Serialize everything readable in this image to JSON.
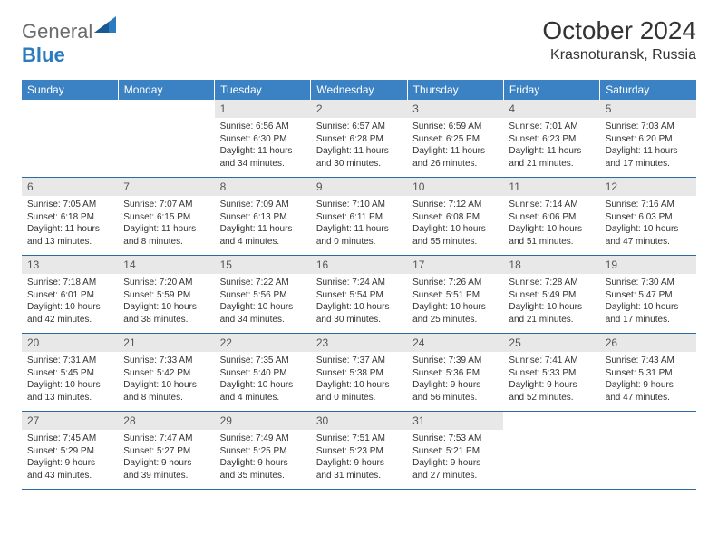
{
  "logo": {
    "general": "General",
    "blue": "Blue"
  },
  "title": "October 2024",
  "location": "Krasnoturansk, Russia",
  "colors": {
    "header_bg": "#3b82c4",
    "header_text": "#ffffff",
    "daynum_bg": "#e8e8e8",
    "daynum_text": "#555555",
    "row_border": "#2b6aa5",
    "logo_gray": "#6b6b6b",
    "logo_blue": "#2b7bbf"
  },
  "weekdays": [
    "Sunday",
    "Monday",
    "Tuesday",
    "Wednesday",
    "Thursday",
    "Friday",
    "Saturday"
  ],
  "weeks": [
    [
      {
        "n": "",
        "sr": "",
        "ss": "",
        "dl": ""
      },
      {
        "n": "",
        "sr": "",
        "ss": "",
        "dl": ""
      },
      {
        "n": "1",
        "sr": "Sunrise: 6:56 AM",
        "ss": "Sunset: 6:30 PM",
        "dl": "Daylight: 11 hours and 34 minutes."
      },
      {
        "n": "2",
        "sr": "Sunrise: 6:57 AM",
        "ss": "Sunset: 6:28 PM",
        "dl": "Daylight: 11 hours and 30 minutes."
      },
      {
        "n": "3",
        "sr": "Sunrise: 6:59 AM",
        "ss": "Sunset: 6:25 PM",
        "dl": "Daylight: 11 hours and 26 minutes."
      },
      {
        "n": "4",
        "sr": "Sunrise: 7:01 AM",
        "ss": "Sunset: 6:23 PM",
        "dl": "Daylight: 11 hours and 21 minutes."
      },
      {
        "n": "5",
        "sr": "Sunrise: 7:03 AM",
        "ss": "Sunset: 6:20 PM",
        "dl": "Daylight: 11 hours and 17 minutes."
      }
    ],
    [
      {
        "n": "6",
        "sr": "Sunrise: 7:05 AM",
        "ss": "Sunset: 6:18 PM",
        "dl": "Daylight: 11 hours and 13 minutes."
      },
      {
        "n": "7",
        "sr": "Sunrise: 7:07 AM",
        "ss": "Sunset: 6:15 PM",
        "dl": "Daylight: 11 hours and 8 minutes."
      },
      {
        "n": "8",
        "sr": "Sunrise: 7:09 AM",
        "ss": "Sunset: 6:13 PM",
        "dl": "Daylight: 11 hours and 4 minutes."
      },
      {
        "n": "9",
        "sr": "Sunrise: 7:10 AM",
        "ss": "Sunset: 6:11 PM",
        "dl": "Daylight: 11 hours and 0 minutes."
      },
      {
        "n": "10",
        "sr": "Sunrise: 7:12 AM",
        "ss": "Sunset: 6:08 PM",
        "dl": "Daylight: 10 hours and 55 minutes."
      },
      {
        "n": "11",
        "sr": "Sunrise: 7:14 AM",
        "ss": "Sunset: 6:06 PM",
        "dl": "Daylight: 10 hours and 51 minutes."
      },
      {
        "n": "12",
        "sr": "Sunrise: 7:16 AM",
        "ss": "Sunset: 6:03 PM",
        "dl": "Daylight: 10 hours and 47 minutes."
      }
    ],
    [
      {
        "n": "13",
        "sr": "Sunrise: 7:18 AM",
        "ss": "Sunset: 6:01 PM",
        "dl": "Daylight: 10 hours and 42 minutes."
      },
      {
        "n": "14",
        "sr": "Sunrise: 7:20 AM",
        "ss": "Sunset: 5:59 PM",
        "dl": "Daylight: 10 hours and 38 minutes."
      },
      {
        "n": "15",
        "sr": "Sunrise: 7:22 AM",
        "ss": "Sunset: 5:56 PM",
        "dl": "Daylight: 10 hours and 34 minutes."
      },
      {
        "n": "16",
        "sr": "Sunrise: 7:24 AM",
        "ss": "Sunset: 5:54 PM",
        "dl": "Daylight: 10 hours and 30 minutes."
      },
      {
        "n": "17",
        "sr": "Sunrise: 7:26 AM",
        "ss": "Sunset: 5:51 PM",
        "dl": "Daylight: 10 hours and 25 minutes."
      },
      {
        "n": "18",
        "sr": "Sunrise: 7:28 AM",
        "ss": "Sunset: 5:49 PM",
        "dl": "Daylight: 10 hours and 21 minutes."
      },
      {
        "n": "19",
        "sr": "Sunrise: 7:30 AM",
        "ss": "Sunset: 5:47 PM",
        "dl": "Daylight: 10 hours and 17 minutes."
      }
    ],
    [
      {
        "n": "20",
        "sr": "Sunrise: 7:31 AM",
        "ss": "Sunset: 5:45 PM",
        "dl": "Daylight: 10 hours and 13 minutes."
      },
      {
        "n": "21",
        "sr": "Sunrise: 7:33 AM",
        "ss": "Sunset: 5:42 PM",
        "dl": "Daylight: 10 hours and 8 minutes."
      },
      {
        "n": "22",
        "sr": "Sunrise: 7:35 AM",
        "ss": "Sunset: 5:40 PM",
        "dl": "Daylight: 10 hours and 4 minutes."
      },
      {
        "n": "23",
        "sr": "Sunrise: 7:37 AM",
        "ss": "Sunset: 5:38 PM",
        "dl": "Daylight: 10 hours and 0 minutes."
      },
      {
        "n": "24",
        "sr": "Sunrise: 7:39 AM",
        "ss": "Sunset: 5:36 PM",
        "dl": "Daylight: 9 hours and 56 minutes."
      },
      {
        "n": "25",
        "sr": "Sunrise: 7:41 AM",
        "ss": "Sunset: 5:33 PM",
        "dl": "Daylight: 9 hours and 52 minutes."
      },
      {
        "n": "26",
        "sr": "Sunrise: 7:43 AM",
        "ss": "Sunset: 5:31 PM",
        "dl": "Daylight: 9 hours and 47 minutes."
      }
    ],
    [
      {
        "n": "27",
        "sr": "Sunrise: 7:45 AM",
        "ss": "Sunset: 5:29 PM",
        "dl": "Daylight: 9 hours and 43 minutes."
      },
      {
        "n": "28",
        "sr": "Sunrise: 7:47 AM",
        "ss": "Sunset: 5:27 PM",
        "dl": "Daylight: 9 hours and 39 minutes."
      },
      {
        "n": "29",
        "sr": "Sunrise: 7:49 AM",
        "ss": "Sunset: 5:25 PM",
        "dl": "Daylight: 9 hours and 35 minutes."
      },
      {
        "n": "30",
        "sr": "Sunrise: 7:51 AM",
        "ss": "Sunset: 5:23 PM",
        "dl": "Daylight: 9 hours and 31 minutes."
      },
      {
        "n": "31",
        "sr": "Sunrise: 7:53 AM",
        "ss": "Sunset: 5:21 PM",
        "dl": "Daylight: 9 hours and 27 minutes."
      },
      {
        "n": "",
        "sr": "",
        "ss": "",
        "dl": ""
      },
      {
        "n": "",
        "sr": "",
        "ss": "",
        "dl": ""
      }
    ]
  ]
}
